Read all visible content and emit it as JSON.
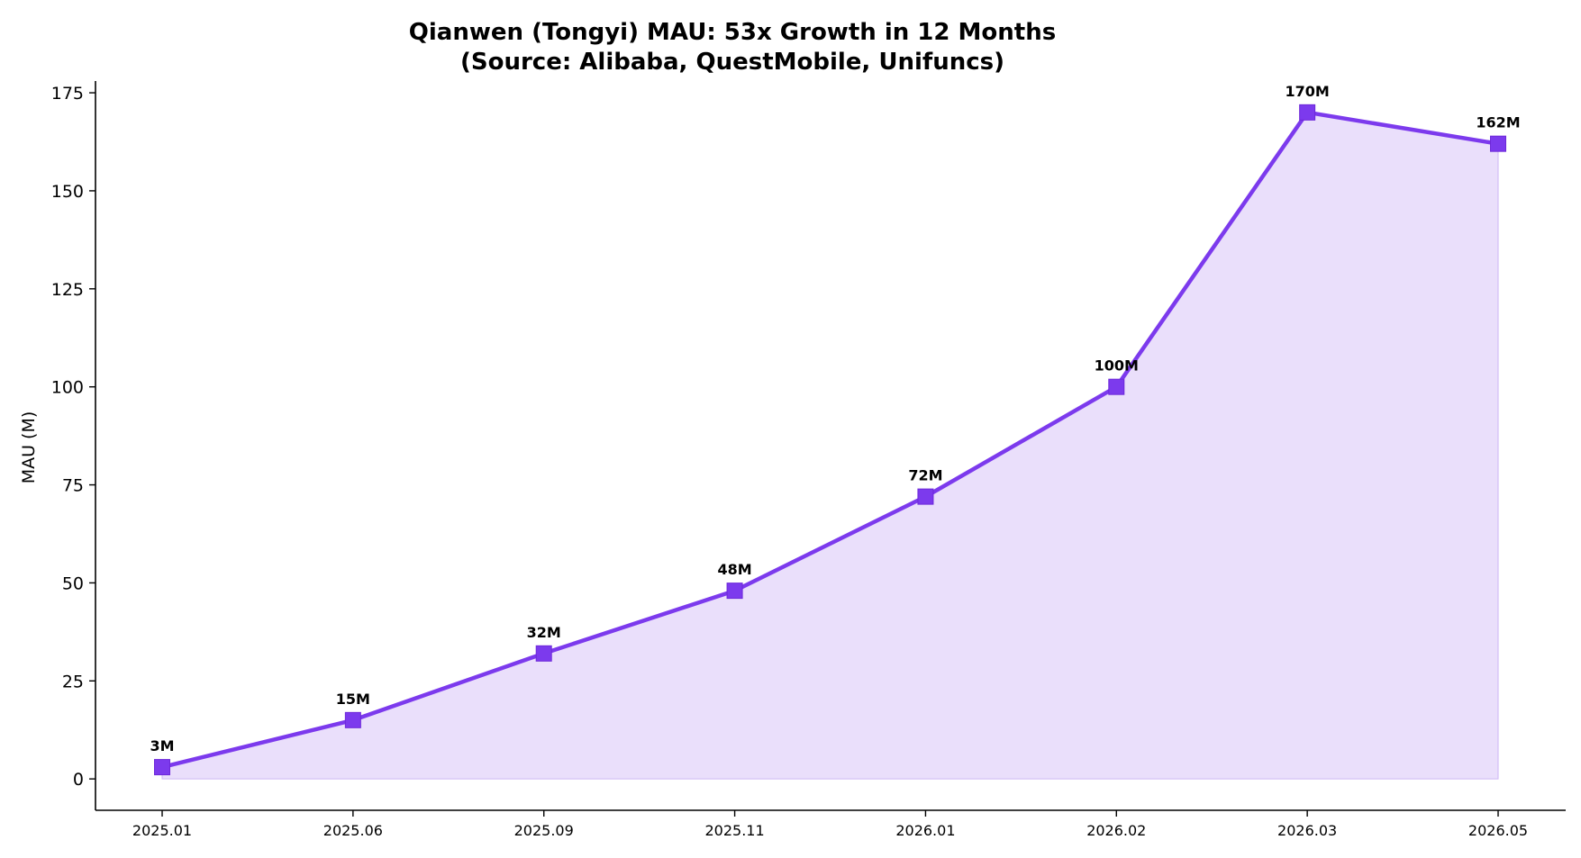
{
  "chart_data": {
    "type": "area",
    "title": "Qianwen (Tongyi) MAU: 53x Growth in 12 Months",
    "subtitle": "(Source: Alibaba, QuestMobile, Unifuncs)",
    "xlabel": "",
    "ylabel": "MAU (M)",
    "categories": [
      "2025.01",
      "2025.06",
      "2025.09",
      "2025.11",
      "2026.01",
      "2026.02",
      "2026.03",
      "2026.05"
    ],
    "series": [
      {
        "values": [
          3,
          15,
          32,
          48,
          72,
          100,
          170,
          162
        ],
        "data_labels": [
          "3M",
          "15M",
          "32M",
          "48M",
          "72M",
          "100M",
          "170M",
          "162M"
        ],
        "line_color": "#7c3aed",
        "fill_color": "#eadffb",
        "marker": "square"
      }
    ],
    "ylim": [
      -8,
      178
    ],
    "yticks": [
      0,
      25,
      50,
      75,
      100,
      125,
      150,
      175
    ],
    "grid": false,
    "legend": "none"
  }
}
